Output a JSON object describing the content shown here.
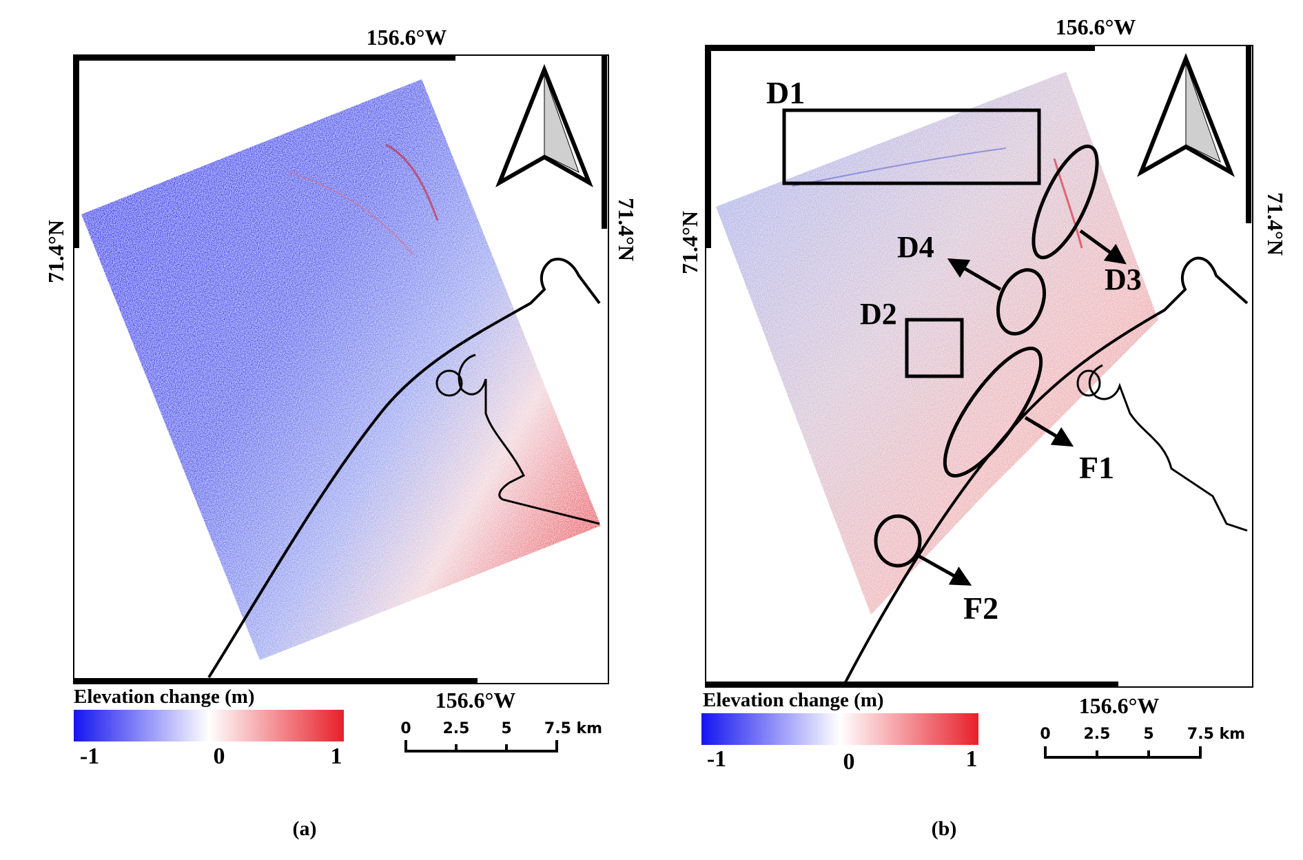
{
  "figure": {
    "panels": [
      {
        "id": "a",
        "caption": "(a)",
        "top_longitude": "156.6°W",
        "bottom_longitude": "156.6°W",
        "left_latitude": "71.4°N",
        "right_latitude": "71.4°N",
        "legend": {
          "title": "Elevation change (m)",
          "min_label": "-1",
          "mid_label": "0",
          "max_label": "1"
        },
        "scalebar": {
          "ticks": [
            "0",
            "2.5",
            "5",
            "7.5 km"
          ]
        },
        "annotations": []
      },
      {
        "id": "b",
        "caption": "(b)",
        "top_longitude": "156.6°W",
        "bottom_longitude": "156.6°W",
        "left_latitude": "71.4°N",
        "right_latitude": "71.4°N",
        "legend": {
          "title": "Elevation change (m)",
          "min_label": "-1",
          "mid_label": "0",
          "max_label": "1"
        },
        "scalebar": {
          "ticks": [
            "0",
            "2.5",
            "5",
            "7.5 km"
          ]
        },
        "annotations": [
          "D1",
          "D2",
          "D3",
          "D4",
          "F1",
          "F2"
        ]
      }
    ],
    "colors": {
      "negative": "#1515f0",
      "neutral": "#ffffff",
      "positive": "#e8202a",
      "frame": "#000000"
    }
  }
}
